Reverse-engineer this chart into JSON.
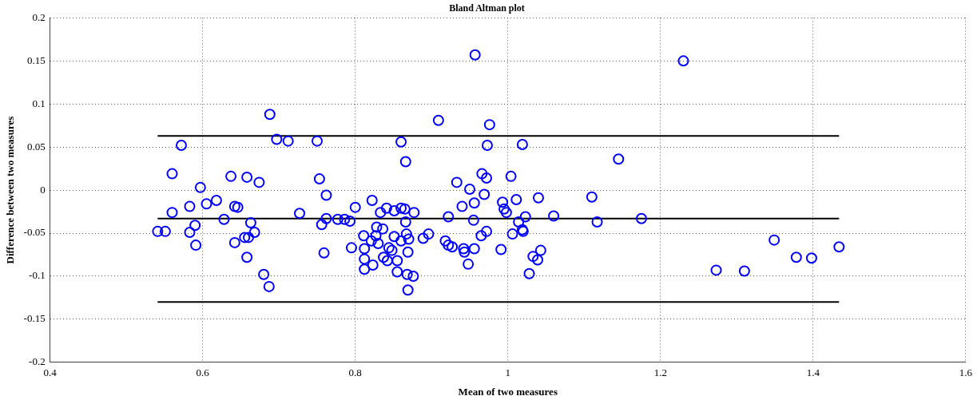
{
  "chart_data": {
    "type": "scatter",
    "title": "Bland Altman plot",
    "xlabel": "Mean of two measures",
    "ylabel": "Difference between two measures",
    "xlim": [
      0.4,
      1.6
    ],
    "xticks": [
      0.4,
      0.6,
      0.8,
      {
        "value": 1,
        "label": "1"
      },
      1.2,
      1.4,
      1.6
    ],
    "ylim": [
      -0.2,
      0.2
    ],
    "yticks": [
      -0.2,
      -0.15,
      -0.1,
      -0.05,
      {
        "value": 0,
        "label": "0"
      },
      0.05,
      0.1,
      0.15,
      0.2
    ],
    "grid": true,
    "legend": false,
    "marker": "circle",
    "series": [
      {
        "color": "#0000ff",
        "x": [
          0.541,
          0.551,
          0.56,
          0.56,
          0.572,
          0.583,
          0.583,
          0.59,
          0.591,
          0.597,
          0.605,
          0.618,
          0.628,
          0.637,
          0.642,
          0.646,
          0.642,
          0.658,
          0.655,
          0.66,
          0.663,
          0.658,
          0.668,
          0.674,
          0.68,
          0.688,
          0.687,
          0.697,
          0.712,
          0.727,
          0.75,
          0.753,
          0.756,
          0.759,
          0.762,
          0.762,
          0.777,
          0.786,
          0.793,
          0.8,
          0.795,
          0.822,
          0.811,
          0.812,
          0.812,
          0.812,
          0.823,
          0.828,
          0.836,
          0.827,
          0.821,
          0.83,
          0.833,
          0.841,
          0.837,
          0.842,
          0.844,
          0.848,
          0.851,
          0.851,
          0.855,
          0.855,
          0.86,
          0.86,
          0.866,
          0.865,
          0.866,
          0.867,
          0.86,
          0.87,
          0.869,
          0.868,
          0.876,
          0.877,
          0.869,
          0.889,
          0.896,
          0.909,
          0.922,
          0.918,
          0.922,
          0.927,
          0.933,
          0.94,
          0.942,
          0.943,
          0.948,
          0.95,
          0.956,
          0.955,
          0.956,
          0.957,
          0.965,
          0.972,
          0.966,
          0.972,
          0.969,
          0.976,
          0.973,
          0.991,
          0.993,
          0.995,
          0.998,
          1.004,
          1.006,
          1.011,
          1.014,
          1.019,
          1.02,
          1.019,
          1.023,
          1.028,
          1.033,
          1.039,
          1.043,
          1.04,
          1.06,
          1.11,
          1.117,
          1.145,
          1.175,
          1.23,
          1.273,
          1.31,
          1.349,
          1.378,
          1.398,
          1.434
        ],
        "values": [
          -0.048,
          -0.048,
          0.019,
          -0.026,
          0.052,
          -0.019,
          -0.049,
          -0.041,
          -0.064,
          0.003,
          -0.016,
          -0.012,
          -0.034,
          0.016,
          -0.019,
          -0.02,
          -0.061,
          0.015,
          -0.055,
          -0.055,
          -0.038,
          -0.078,
          -0.049,
          0.009,
          -0.098,
          0.088,
          -0.112,
          0.059,
          0.057,
          -0.027,
          0.057,
          0.013,
          -0.04,
          -0.073,
          -0.006,
          -0.033,
          -0.034,
          -0.034,
          -0.036,
          -0.02,
          -0.067,
          -0.012,
          -0.053,
          -0.068,
          -0.08,
          -0.092,
          -0.087,
          -0.043,
          -0.045,
          -0.053,
          -0.059,
          -0.062,
          -0.026,
          -0.021,
          -0.078,
          -0.082,
          -0.067,
          -0.07,
          -0.054,
          -0.024,
          -0.082,
          -0.095,
          -0.021,
          0.056,
          0.033,
          -0.022,
          -0.037,
          -0.051,
          -0.059,
          -0.057,
          -0.072,
          -0.098,
          -0.1,
          -0.026,
          -0.116,
          -0.056,
          -0.051,
          0.081,
          -0.031,
          -0.059,
          -0.064,
          -0.066,
          0.009,
          -0.019,
          -0.068,
          -0.072,
          -0.086,
          0.001,
          -0.015,
          -0.035,
          -0.068,
          0.157,
          -0.053,
          -0.048,
          0.019,
          0.014,
          -0.005,
          0.076,
          0.052,
          -0.069,
          -0.014,
          -0.022,
          -0.026,
          0.016,
          -0.051,
          -0.011,
          -0.037,
          -0.046,
          -0.048,
          0.053,
          -0.031,
          -0.097,
          -0.077,
          -0.081,
          -0.07,
          -0.009,
          -0.03,
          -0.008,
          -0.037,
          0.036,
          -0.033,
          0.15,
          -0.093,
          -0.094,
          -0.058,
          -0.078,
          -0.079,
          -0.066
        ]
      },
      {
        "type": "line",
        "color": "#000000",
        "marker": "none",
        "x": [
          0.541,
          1.434
        ],
        "values": [
          0.063,
          0.063
        ]
      },
      {
        "type": "line",
        "color": "#000000",
        "marker": "none",
        "x": [
          0.541,
          1.434
        ],
        "values": [
          -0.033,
          -0.033
        ]
      },
      {
        "type": "line",
        "color": "#000000",
        "marker": "none",
        "x": [
          0.541,
          1.434
        ],
        "values": [
          -0.13,
          -0.13
        ]
      }
    ]
  }
}
